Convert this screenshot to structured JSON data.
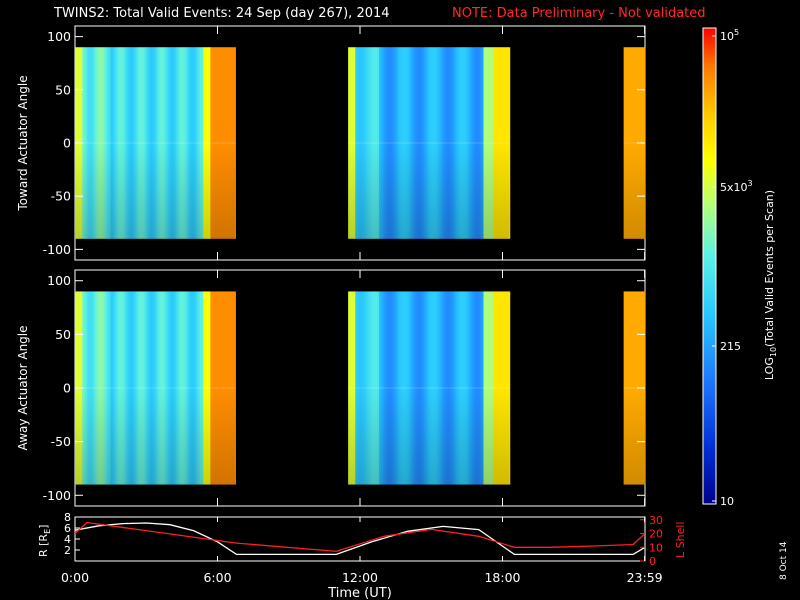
{
  "title": {
    "main": "TWINS2: Total Valid Events: 24 Sep (day 267), 2014",
    "note": "NOTE: Data Preliminary - Not validated"
  },
  "panels": [
    {
      "ylabel": "Toward Actuator Angle",
      "yticks": [
        "100",
        "50",
        "0",
        "-50",
        "-100"
      ]
    },
    {
      "ylabel": "Away Actuator Angle",
      "yticks": [
        "100",
        "50",
        "0",
        "-50",
        "-100"
      ]
    }
  ],
  "orbit_panel": {
    "ylabel_left": "R [R",
    "ylabel_left_sub": "E",
    "ylabel_left_end": "]",
    "yticks_left": [
      "8",
      "6",
      "4",
      "2"
    ],
    "ylabel_right": "L Shell",
    "yticks_right": [
      "30",
      "20",
      "10",
      "0"
    ],
    "colors": {
      "r": "#ffffff",
      "lshell": "#ff2020"
    }
  },
  "xaxis": {
    "label": "Time (UT)",
    "ticks": [
      "0:00",
      "6:00",
      "12:00",
      "18:00",
      "23:59"
    ]
  },
  "colorbar": {
    "label": "LOG",
    "label_sub": "10",
    "label_rest": "(Total Valid Events per Scan)",
    "ticks": [
      {
        "base": "10",
        "exp": "5"
      },
      {
        "base": "5x10",
        "exp": "3"
      },
      {
        "base": "215",
        "exp": ""
      },
      {
        "base": "10",
        "exp": ""
      }
    ],
    "colors": [
      "#00008c",
      "#0030d8",
      "#1e78ff",
      "#28c8ff",
      "#5af0e6",
      "#b4ff78",
      "#ffff00",
      "#ffc800",
      "#ff7800",
      "#ff0000"
    ]
  },
  "date_stamp": "8 Oct 14",
  "chart_data": {
    "type": "heatmap",
    "x_unit": "hours UT",
    "xlim": [
      0,
      24
    ],
    "ylim": [
      -110,
      110
    ],
    "data_range_y": [
      -90,
      90
    ],
    "observation_intervals_h": [
      [
        0,
        6.75
      ],
      [
        11.5,
        18.3
      ],
      [
        23.1,
        24
      ]
    ],
    "r_re_series": {
      "x": [
        0,
        1,
        2,
        3,
        4,
        5,
        6,
        6.8,
        7.5,
        9,
        11,
        12.5,
        14,
        15.5,
        17,
        18.5,
        20,
        22,
        23.5,
        24
      ],
      "y": [
        5.6,
        6.4,
        6.8,
        6.9,
        6.6,
        5.5,
        3.5,
        1.2,
        1.2,
        1.2,
        1.2,
        3.5,
        5.4,
        6.3,
        5.7,
        1.2,
        1.2,
        1.2,
        1.2,
        2.5
      ]
    },
    "lshell_series": {
      "x": [
        0,
        0.5,
        6.8,
        11,
        13,
        15,
        17,
        18.5,
        20,
        22,
        23.5,
        24
      ],
      "y": [
        20,
        28,
        13,
        7,
        18,
        23,
        18,
        10,
        10,
        11,
        12,
        20
      ]
    }
  }
}
